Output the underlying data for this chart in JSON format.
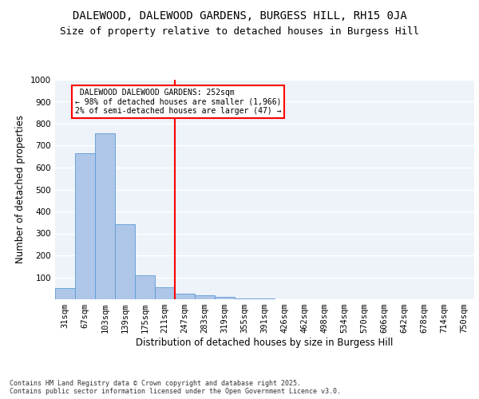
{
  "title1": "DALEWOOD, DALEWOOD GARDENS, BURGESS HILL, RH15 0JA",
  "title2": "Size of property relative to detached houses in Burgess Hill",
  "xlabel": "Distribution of detached houses by size in Burgess Hill",
  "ylabel": "Number of detached properties",
  "footnote": "Contains HM Land Registry data © Crown copyright and database right 2025.\nContains public sector information licensed under the Open Government Licence v3.0.",
  "bin_labels": [
    "31sqm",
    "67sqm",
    "103sqm",
    "139sqm",
    "175sqm",
    "211sqm",
    "247sqm",
    "283sqm",
    "319sqm",
    "355sqm",
    "391sqm",
    "426sqm",
    "462sqm",
    "498sqm",
    "534sqm",
    "570sqm",
    "606sqm",
    "642sqm",
    "678sqm",
    "714sqm",
    "750sqm"
  ],
  "bar_values": [
    50,
    667,
    757,
    343,
    110,
    53,
    27,
    17,
    10,
    5,
    5,
    0,
    0,
    0,
    0,
    0,
    0,
    0,
    0,
    0,
    0
  ],
  "bar_color": "#aec6e8",
  "bar_edge_color": "#5b9bd5",
  "vline_bin": 6,
  "vline_color": "red",
  "annotation_text": " DALEWOOD DALEWOOD GARDENS: 252sqm\n← 98% of detached houses are smaller (1,966)\n2% of semi-detached houses are larger (47) →",
  "annotation_box_color": "white",
  "annotation_box_edge": "red",
  "ylim": [
    0,
    1000
  ],
  "yticks": [
    0,
    100,
    200,
    300,
    400,
    500,
    600,
    700,
    800,
    900,
    1000
  ],
  "bg_color": "#eef2f9",
  "grid_color": "white",
  "title_fontsize": 10,
  "subtitle_fontsize": 9,
  "axis_label_fontsize": 8.5,
  "tick_fontsize": 7.5,
  "annotation_fontsize": 7,
  "footnote_fontsize": 6
}
